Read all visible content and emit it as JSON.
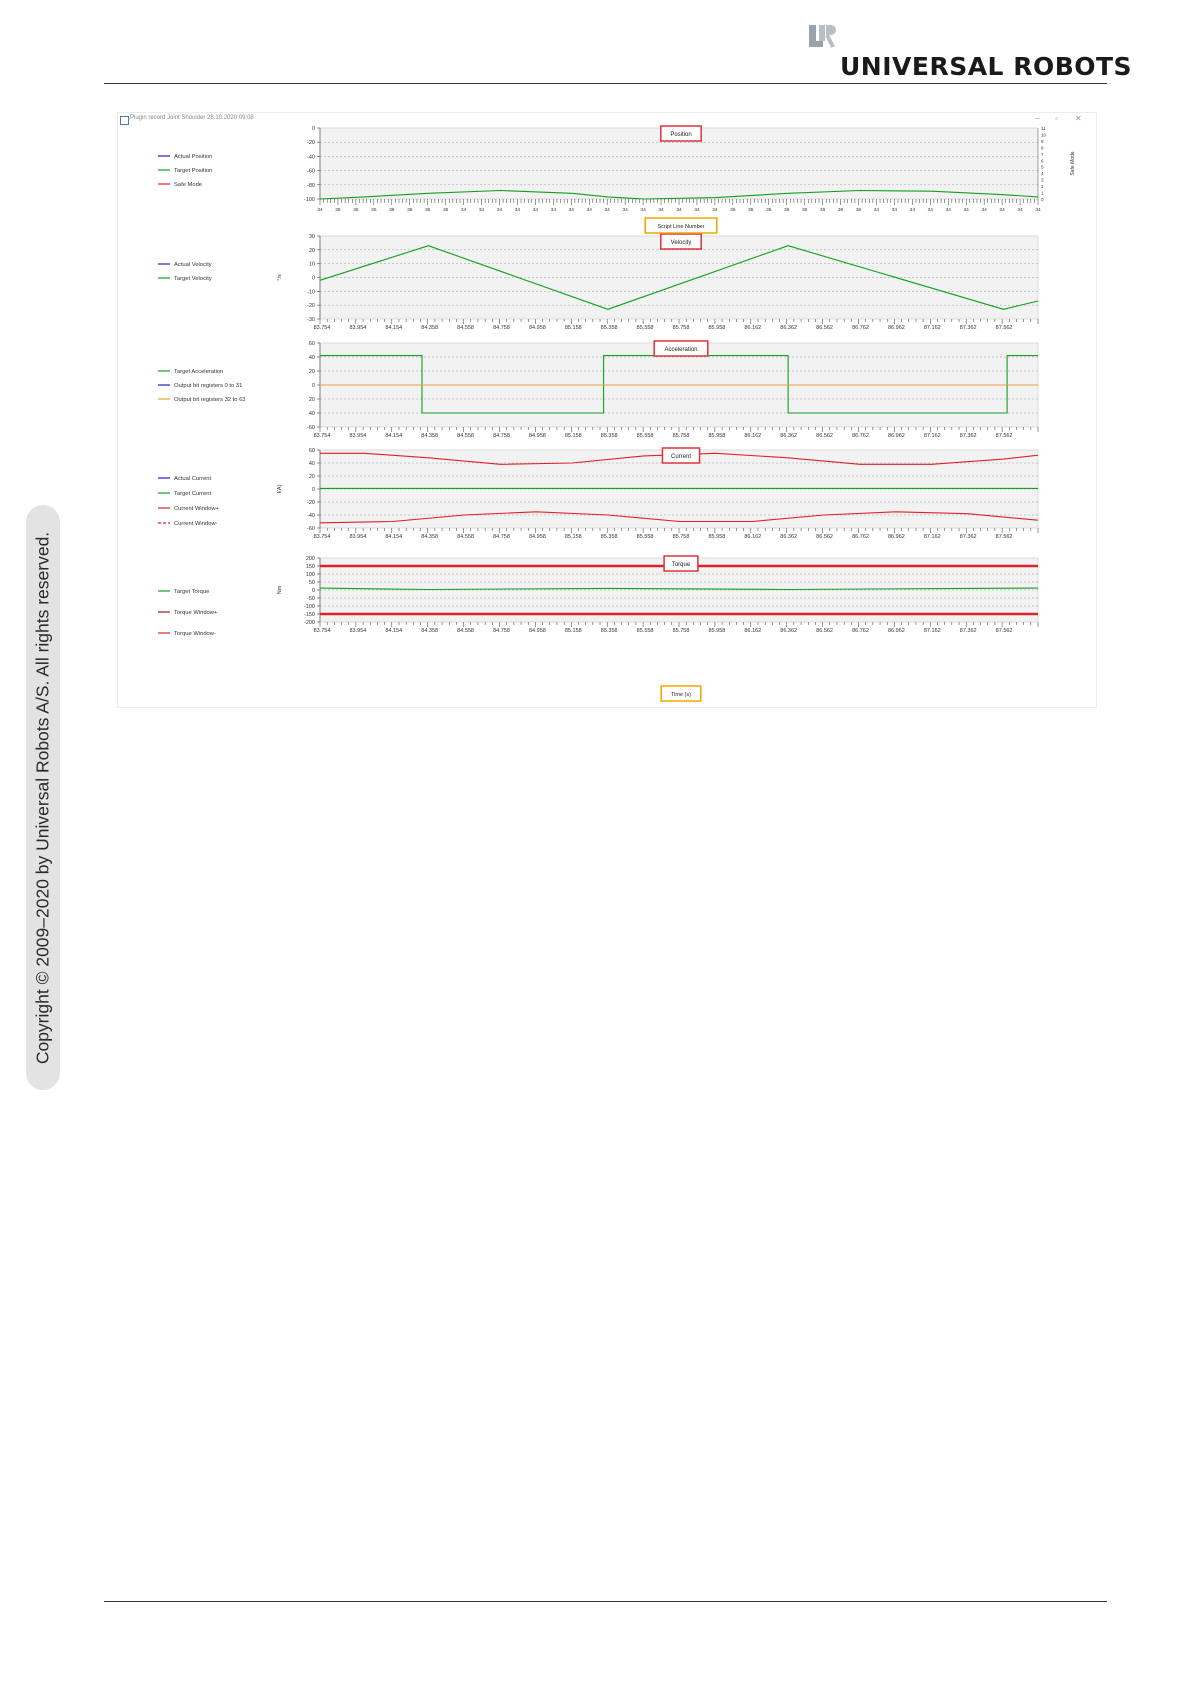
{
  "header": {
    "brand": "UNIVERSAL ROBOTS"
  },
  "sidebar": {
    "copyright": "Copyright © 2009–2020 by Universal Robots A/S. All rights reserved."
  },
  "window": {
    "title": "Plugin record Joint Shoulder 28.10.2020 09:08",
    "minimize": "–",
    "restore": "▫",
    "close": "✕"
  },
  "callouts": {
    "script_line_number": "Script Line Number",
    "time": "Time (s)"
  },
  "time_ticks": [
    "83.754",
    "83.954",
    "84.154",
    "84.358",
    "84.558",
    "84.758",
    "84.958",
    "85.158",
    "85.358",
    "85.558",
    "85.758",
    "85.958",
    "86.162",
    "86.362",
    "86.562",
    "86.762",
    "86.962",
    "87.162",
    "87.362",
    "87.562"
  ],
  "script_ticks": [
    "34",
    "36",
    "36",
    "36",
    "36",
    "36",
    "36",
    "36",
    "34",
    "34",
    "34",
    "34",
    "34",
    "34",
    "34",
    "34",
    "34",
    "34",
    "34",
    "34",
    "34",
    "34",
    "34",
    "36",
    "36",
    "36",
    "36",
    "36",
    "36",
    "36",
    "36",
    "34",
    "34",
    "34",
    "34",
    "34",
    "34",
    "34",
    "34",
    "34",
    "34"
  ],
  "colors": {
    "red_box": "#e0323c",
    "orange_box": "#f0a500",
    "green": "#10a020",
    "red": "#e0202a",
    "blue": "#2020c0",
    "orange": "#e8a040",
    "darkred": "#a01818"
  },
  "chart_data": [
    {
      "type": "line",
      "title": "Position",
      "ylim": [
        -100,
        0
      ],
      "yticks": [
        "0",
        "-20",
        "-40",
        "-60",
        "-80",
        "-100"
      ],
      "right_ticks": [
        "11",
        "10",
        "9",
        "8",
        "7",
        "6",
        "5",
        "4",
        "3",
        "2",
        "1",
        "0"
      ],
      "right_label": "Safe Mode",
      "legend": [
        "Actual Position",
        "Target Position",
        "Safe Mode"
      ],
      "series": [
        {
          "name": "Target Position",
          "x": [
            83.754,
            84.0,
            84.358,
            84.758,
            85.158,
            85.358,
            85.558,
            85.958,
            86.362,
            86.762,
            87.162,
            87.562,
            87.754
          ],
          "y": [
            -100,
            -97,
            -92,
            -88,
            -92,
            -97,
            -100,
            -98,
            -92,
            -88,
            -89,
            -94,
            -97
          ]
        }
      ]
    },
    {
      "type": "line",
      "title": "Velocity",
      "ylim": [
        -30,
        30
      ],
      "yticks": [
        "30",
        "20",
        "10",
        "0",
        "-10",
        "-20",
        "-30"
      ],
      "ylabel": "°/s",
      "legend": [
        "Actual Velocity",
        "Target Velocity"
      ],
      "series": [
        {
          "name": "Target Velocity",
          "x": [
            83.754,
            84.358,
            85.358,
            86.362,
            87.562,
            87.754
          ],
          "y": [
            -2,
            23,
            -23,
            23,
            -23,
            -17
          ]
        }
      ]
    },
    {
      "type": "line",
      "title": "Acceleration",
      "ylim": [
        -60,
        60
      ],
      "yticks": [
        "60",
        "40",
        "20",
        "0",
        "20",
        "40",
        "-60"
      ],
      "legend": [
        "Target Acceleration",
        "Output bit registers 0 to 31",
        "Output bit registers 32 to 63"
      ],
      "series": [
        {
          "name": "Target Acceleration",
          "x": [
            83.754,
            84.322,
            84.322,
            85.334,
            85.334,
            86.362,
            86.362,
            87.582,
            87.582,
            87.754
          ],
          "y": [
            42,
            42,
            -40,
            -40,
            42,
            42,
            -40,
            -40,
            42,
            42
          ]
        },
        {
          "name": "Output bit registers 32 to 63",
          "x": [
            83.754,
            87.754
          ],
          "y": [
            0,
            0
          ]
        }
      ]
    },
    {
      "type": "line",
      "title": "Current",
      "ylim": [
        -60,
        60
      ],
      "yticks": [
        "60",
        "40",
        "20",
        "0",
        "-20",
        "-40",
        "-60"
      ],
      "ylabel": "I(A)",
      "legend": [
        "Actual Current",
        "Target Current",
        "Current Window+",
        "Current Window-"
      ],
      "series": [
        {
          "name": "Current Window+",
          "x": [
            83.754,
            84.0,
            84.358,
            84.758,
            85.158,
            85.558,
            85.958,
            86.362,
            86.762,
            87.162,
            87.562,
            87.754
          ],
          "y": [
            55,
            55,
            48,
            38,
            40,
            51,
            55,
            48,
            38,
            38,
            46,
            52
          ]
        },
        {
          "name": "Target Current",
          "x": [
            83.754,
            87.754
          ],
          "y": [
            1,
            1
          ]
        },
        {
          "name": "Current Window-",
          "x": [
            83.754,
            84.158,
            84.558,
            84.958,
            85.358,
            85.758,
            86.162,
            86.562,
            86.962,
            87.362,
            87.754
          ],
          "y": [
            -52,
            -50,
            -40,
            -35,
            -40,
            -50,
            -50,
            -40,
            -35,
            -38,
            -48
          ]
        }
      ]
    },
    {
      "type": "line",
      "title": "Torque",
      "ylim": [
        -200,
        200
      ],
      "yticks": [
        "200",
        "150",
        "100",
        "50",
        "0",
        "-50",
        "-100",
        "-150",
        "-200"
      ],
      "ylabel": "Nm",
      "legend": [
        "Target Torque",
        "Torque Window+",
        "Torque Window-"
      ],
      "series": [
        {
          "name": "Torque Window+",
          "x": [
            83.754,
            87.754
          ],
          "y": [
            150,
            150
          ]
        },
        {
          "name": "Target Torque",
          "x": [
            83.754,
            84.358,
            85.358,
            86.362,
            87.362,
            87.754
          ],
          "y": [
            12,
            3,
            10,
            3,
            10,
            12
          ]
        },
        {
          "name": "Torque Window-",
          "x": [
            83.754,
            87.754
          ],
          "y": [
            -150,
            -150
          ]
        }
      ]
    }
  ]
}
